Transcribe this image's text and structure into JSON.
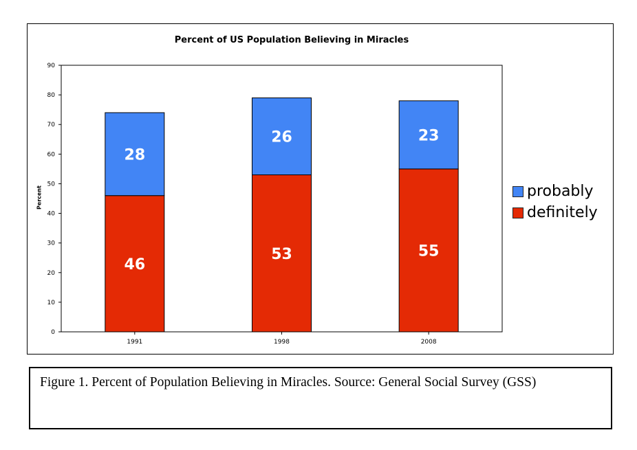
{
  "chart_data": {
    "type": "bar",
    "stacked": true,
    "title": "Percent of US Population Believing in Miracles",
    "xlabel": "",
    "ylabel": "Percent",
    "ylim": [
      0,
      90
    ],
    "yticks": [
      "0",
      "10",
      "20",
      "30",
      "40",
      "50",
      "60",
      "70",
      "80",
      "90"
    ],
    "categories": [
      "1991",
      "1998",
      "2008"
    ],
    "series": [
      {
        "name": "definitely",
        "values": [
          46,
          53,
          55
        ],
        "color": "#e42a05"
      },
      {
        "name": "probably",
        "values": [
          28,
          26,
          23
        ],
        "color": "#4285f5"
      }
    ],
    "data_labels": true,
    "legend": {
      "position": "right",
      "items": [
        "probably",
        "definitely"
      ]
    },
    "grid": false
  },
  "caption": {
    "text": "Figure 1. Percent of Population Believing in Miracles. Source: General Social Survey (GSS)"
  }
}
